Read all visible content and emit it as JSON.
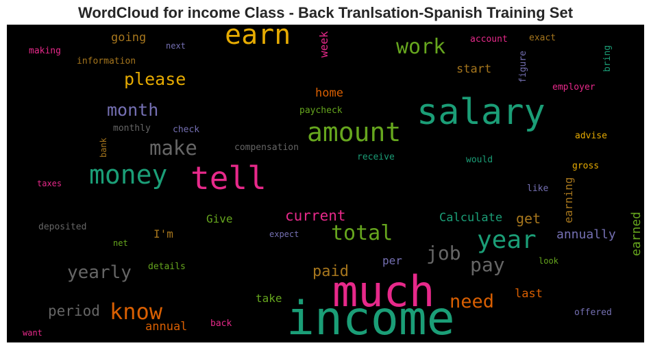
{
  "title": "WordCloud for income Class - Back Tranlsation-Spanish Training Set",
  "colors": {
    "teal": "#1b9e77",
    "orange": "#d95f02",
    "purple": "#7570b3",
    "pink": "#e7298a",
    "green": "#66a61e",
    "yellow": "#e6ab02",
    "brown": "#a6761d",
    "gray": "#666666"
  },
  "words": [
    {
      "text": "income",
      "color": "teal"
    },
    {
      "text": "much",
      "color": "pink"
    },
    {
      "text": "salary",
      "color": "teal"
    },
    {
      "text": "tell",
      "color": "pink"
    },
    {
      "text": "earn",
      "color": "yellow"
    },
    {
      "text": "amount",
      "color": "green"
    },
    {
      "text": "money",
      "color": "teal"
    },
    {
      "text": "year",
      "color": "teal"
    },
    {
      "text": "know",
      "color": "orange"
    },
    {
      "text": "work",
      "color": "green"
    },
    {
      "text": "total",
      "color": "green"
    },
    {
      "text": "make",
      "color": "gray"
    },
    {
      "text": "job",
      "color": "gray"
    },
    {
      "text": "pay",
      "color": "gray"
    },
    {
      "text": "need",
      "color": "orange"
    },
    {
      "text": "month",
      "color": "purple"
    },
    {
      "text": "please",
      "color": "yellow"
    },
    {
      "text": "yearly",
      "color": "gray"
    },
    {
      "text": "current",
      "color": "pink"
    },
    {
      "text": "paid",
      "color": "brown"
    },
    {
      "text": "period",
      "color": "gray"
    },
    {
      "text": "Calculate",
      "color": "teal"
    },
    {
      "text": "annually",
      "color": "purple"
    },
    {
      "text": "get",
      "color": "brown"
    },
    {
      "text": "going",
      "color": "brown"
    },
    {
      "text": "start",
      "color": "brown"
    },
    {
      "text": "home",
      "color": "orange"
    },
    {
      "text": "earned",
      "color": "green"
    },
    {
      "text": "earning",
      "color": "brown"
    },
    {
      "text": "annual",
      "color": "orange"
    },
    {
      "text": "last",
      "color": "orange"
    },
    {
      "text": "take",
      "color": "green"
    },
    {
      "text": "Give",
      "color": "green"
    },
    {
      "text": "I'm",
      "color": "brown"
    },
    {
      "text": "per",
      "color": "purple"
    },
    {
      "text": "week",
      "color": "pink"
    },
    {
      "text": "information",
      "color": "brown"
    },
    {
      "text": "making",
      "color": "pink"
    },
    {
      "text": "next",
      "color": "purple"
    },
    {
      "text": "account",
      "color": "pink"
    },
    {
      "text": "exact",
      "color": "brown"
    },
    {
      "text": "figure",
      "color": "purple"
    },
    {
      "text": "bring",
      "color": "teal"
    },
    {
      "text": "employer",
      "color": "pink"
    },
    {
      "text": "paycheck",
      "color": "green"
    },
    {
      "text": "monthly",
      "color": "gray"
    },
    {
      "text": "check",
      "color": "purple"
    },
    {
      "text": "compensation",
      "color": "gray"
    },
    {
      "text": "bank",
      "color": "brown"
    },
    {
      "text": "receive",
      "color": "teal"
    },
    {
      "text": "would",
      "color": "teal"
    },
    {
      "text": "advise",
      "color": "yellow"
    },
    {
      "text": "gross",
      "color": "yellow"
    },
    {
      "text": "taxes",
      "color": "pink"
    },
    {
      "text": "like",
      "color": "purple"
    },
    {
      "text": "deposited",
      "color": "gray"
    },
    {
      "text": "expect",
      "color": "purple"
    },
    {
      "text": "net",
      "color": "green"
    },
    {
      "text": "details",
      "color": "green"
    },
    {
      "text": "look",
      "color": "green"
    },
    {
      "text": "offered",
      "color": "purple"
    },
    {
      "text": "back",
      "color": "pink"
    },
    {
      "text": "want",
      "color": "pink"
    }
  ]
}
